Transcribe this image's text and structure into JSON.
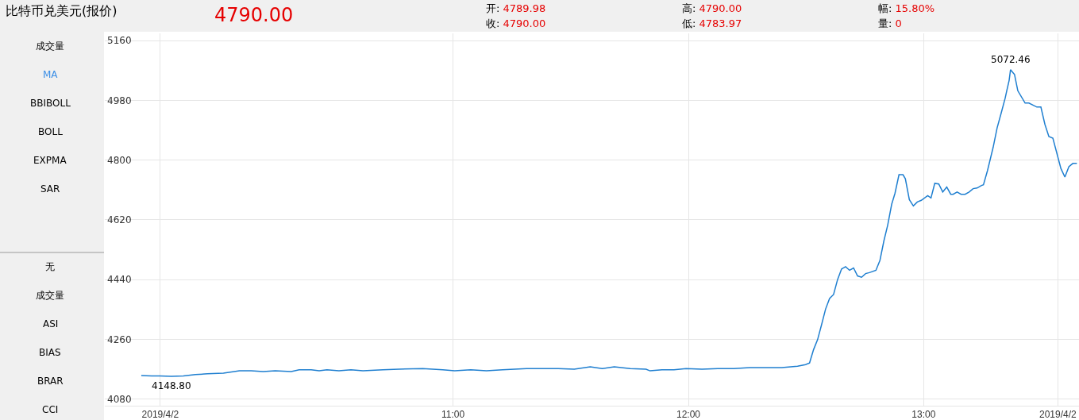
{
  "chart_data": {
    "type": "line",
    "title": "比特币兑美元(报价)",
    "x": [
      9.675,
      9.719,
      9.753,
      9.803,
      9.854,
      9.905,
      9.956,
      10.024,
      10.092,
      10.142,
      10.193,
      10.244,
      10.312,
      10.346,
      10.397,
      10.431,
      10.464,
      10.515,
      10.566,
      10.617,
      10.702,
      10.769,
      10.871,
      10.956,
      11.007,
      11.075,
      11.142,
      11.21,
      11.312,
      11.447,
      11.515,
      11.583,
      11.634,
      11.685,
      11.753,
      11.82,
      11.837,
      11.888,
      11.939,
      11.99,
      12.058,
      12.125,
      12.193,
      12.261,
      12.329,
      12.397,
      12.464,
      12.498,
      12.515,
      12.532,
      12.549,
      12.566,
      12.583,
      12.6,
      12.617,
      12.634,
      12.651,
      12.658,
      12.668,
      12.685,
      12.702,
      12.719,
      12.736,
      12.753,
      12.769,
      12.797,
      12.814,
      12.831,
      12.847,
      12.864,
      12.878,
      12.895,
      12.912,
      12.922,
      12.939,
      12.956,
      12.973,
      12.99,
      13.017,
      13.031,
      13.047,
      13.064,
      13.081,
      13.098,
      13.115,
      13.125,
      13.142,
      13.159,
      13.176,
      13.193,
      13.21,
      13.227,
      13.244,
      13.254,
      13.271,
      13.295,
      13.312,
      13.329,
      13.346,
      13.353,
      13.363,
      13.369,
      13.38,
      13.386,
      13.4,
      13.431,
      13.447,
      13.481,
      13.498,
      13.515,
      13.532,
      13.549,
      13.583,
      13.6,
      13.617,
      13.634,
      13.651
    ],
    "series": [
      {
        "color": "#1f7fd0",
        "values": [
          4151,
          4150,
          4150,
          4148.8,
          4150,
          4154,
          4156,
          4158,
          4165,
          4165,
          4163,
          4165,
          4163,
          4168,
          4168,
          4165,
          4168,
          4165,
          4168,
          4165,
          4168,
          4170,
          4172,
          4168,
          4165,
          4168,
          4165,
          4168,
          4172,
          4172,
          4170,
          4177,
          4172,
          4177,
          4172,
          4170,
          4165,
          4168,
          4168,
          4172,
          4170,
          4172,
          4172,
          4175,
          4175,
          4175,
          4179,
          4184,
          4189,
          4229,
          4259,
          4304,
          4351,
          4383,
          4395,
          4440,
          4472,
          4475,
          4479,
          4468,
          4475,
          4451,
          4447,
          4458,
          4461,
          4468,
          4498,
          4557,
          4604,
          4667,
          4700,
          4756,
          4756,
          4744,
          4681,
          4662,
          4674,
          4679,
          4693,
          4686,
          4730,
          4728,
          4704,
          4719,
          4697,
          4697,
          4704,
          4697,
          4697,
          4704,
          4714,
          4716,
          4723,
          4726,
          4768,
          4838,
          4897,
          4941,
          4986,
          5009,
          5040,
          5072.46,
          5063,
          5058,
          5009,
          4972,
          4972,
          4960,
          4960,
          4908,
          4871,
          4866,
          4775,
          4749,
          4780,
          4790,
          4790
        ]
      }
    ],
    "xlim": [
      9.52,
      13.66
    ],
    "xticks": [
      {
        "value": 9.756,
        "label": "2019/4/2"
      },
      {
        "value": 11,
        "label": "11:00"
      },
      {
        "value": 12,
        "label": "12:00"
      },
      {
        "value": 13,
        "label": "13:00"
      },
      {
        "value": 13.57,
        "label": "2019/4/2"
      }
    ],
    "ylim": [
      4060,
      5182
    ],
    "yticks": [
      4080,
      4260,
      4440,
      4620,
      4800,
      4980,
      5160
    ],
    "grid": true,
    "legend": false,
    "marker": "none",
    "line_style": "solid",
    "annotations": [
      {
        "text": "4148.80",
        "x": 9.803,
        "y": 4148.8
      },
      {
        "text": "5072.46",
        "x": 13.369,
        "y": 5072.46
      },
      "4790.00",
      "开: 4789.98",
      "收: 4790.00",
      "高: 4790.00",
      "低: 4783.97",
      "幅: 15.80%",
      "量: 0",
      "成交量",
      "MA",
      "BBIBOLL",
      "BOLL",
      "EXPMA",
      "SAR",
      "无",
      "成交量",
      "ASI",
      "BIAS",
      "BRAR",
      "CCI"
    ]
  }
}
